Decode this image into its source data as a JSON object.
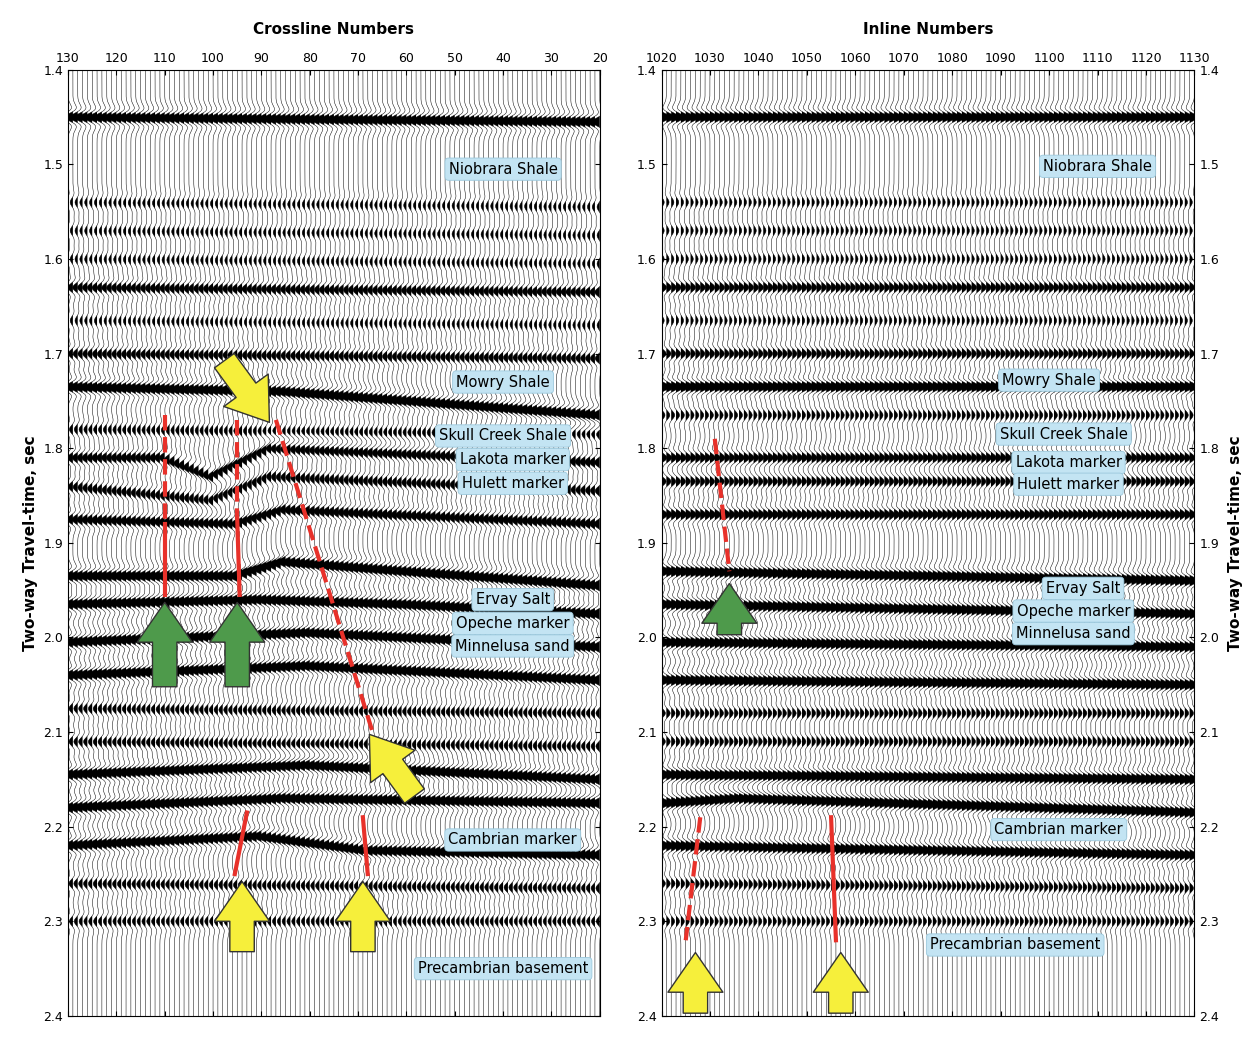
{
  "chart_data": [
    {
      "type": "seismic_section",
      "title": "Crossline Numbers",
      "ylabel": "Two-way Travel-time, sec",
      "xlim": [
        130,
        20
      ],
      "xticks": [
        130,
        120,
        110,
        100,
        90,
        80,
        70,
        60,
        50,
        40,
        30,
        20
      ],
      "ylim": [
        2.4,
        1.4
      ],
      "yticks": [
        1.4,
        1.5,
        1.6,
        1.7,
        1.8,
        1.9,
        2.0,
        2.1,
        2.2,
        2.3,
        2.4
      ],
      "horizons": [
        {
          "x": [
            130,
            20
          ],
          "t": [
            1.45,
            1.455
          ],
          "amplitude": 1.0
        },
        {
          "x": [
            130,
            20
          ],
          "t": [
            1.54,
            1.545
          ],
          "amplitude": 0.35
        },
        {
          "x": [
            130,
            20
          ],
          "t": [
            1.57,
            1.575
          ],
          "amplitude": 0.35
        },
        {
          "x": [
            130,
            20
          ],
          "t": [
            1.6,
            1.605
          ],
          "amplitude": 0.35
        },
        {
          "x": [
            130,
            20
          ],
          "t": [
            1.63,
            1.635
          ],
          "amplitude": 0.65
        },
        {
          "x": [
            130,
            20
          ],
          "t": [
            1.665,
            1.67
          ],
          "amplitude": 0.35
        },
        {
          "x": [
            130,
            20
          ],
          "t": [
            1.7,
            1.705
          ],
          "amplitude": 0.6
        },
        {
          "x": [
            130,
            85,
            20
          ],
          "t": [
            1.735,
            1.74,
            1.765
          ],
          "amplitude": 1.0
        },
        {
          "x": [
            130,
            20
          ],
          "t": [
            1.78,
            1.785
          ],
          "amplitude": 0.45
        },
        {
          "x": [
            130,
            110,
            100,
            88,
            20
          ],
          "t": [
            1.81,
            1.81,
            1.83,
            1.8,
            1.815
          ],
          "amplitude": 0.7
        },
        {
          "x": [
            130,
            100,
            88,
            20
          ],
          "t": [
            1.84,
            1.855,
            1.83,
            1.845
          ],
          "amplitude": 0.6
        },
        {
          "x": [
            130,
            95,
            85,
            20
          ],
          "t": [
            1.875,
            1.88,
            1.865,
            1.88
          ],
          "amplitude": 0.75
        },
        {
          "x": [
            130,
            95,
            85,
            60,
            20
          ],
          "t": [
            1.935,
            1.935,
            1.92,
            1.93,
            1.945
          ],
          "amplitude": 1.0
        },
        {
          "x": [
            130,
            90,
            60,
            20
          ],
          "t": [
            1.965,
            1.96,
            1.965,
            1.975
          ],
          "amplitude": 1.0
        },
        {
          "x": [
            130,
            80,
            20
          ],
          "t": [
            2.005,
            1.995,
            2.01
          ],
          "amplitude": 1.0
        },
        {
          "x": [
            130,
            80,
            20
          ],
          "t": [
            2.04,
            2.03,
            2.045
          ],
          "amplitude": 1.0
        },
        {
          "x": [
            130,
            20
          ],
          "t": [
            2.075,
            2.08
          ],
          "amplitude": 0.5
        },
        {
          "x": [
            130,
            20
          ],
          "t": [
            2.11,
            2.115
          ],
          "amplitude": 0.5
        },
        {
          "x": [
            130,
            80,
            20
          ],
          "t": [
            2.145,
            2.135,
            2.15
          ],
          "amplitude": 1.0
        },
        {
          "x": [
            130,
            85,
            20
          ],
          "t": [
            2.18,
            2.17,
            2.175
          ],
          "amplitude": 1.0
        },
        {
          "x": [
            130,
            90,
            68,
            20
          ],
          "t": [
            2.22,
            2.21,
            2.225,
            2.23
          ],
          "amplitude": 0.95
        },
        {
          "x": [
            130,
            20
          ],
          "t": [
            2.26,
            2.265
          ],
          "amplitude": 0.5
        },
        {
          "x": [
            130,
            20
          ],
          "t": [
            2.3,
            2.3
          ],
          "amplitude": 0.45
        }
      ],
      "labels": [
        {
          "text": "Niobrara Shale",
          "x": 40,
          "t": 1.505
        },
        {
          "text": "Mowry Shale",
          "x": 40,
          "t": 1.73
        },
        {
          "text": "Skull Creek Shale",
          "x": 40,
          "t": 1.787
        },
        {
          "text": "Lakota marker",
          "x": 38,
          "t": 1.812
        },
        {
          "text": "Hulett marker",
          "x": 38,
          "t": 1.837
        },
        {
          "text": "Ervay Salt",
          "x": 38,
          "t": 1.96
        },
        {
          "text": "Opeche marker",
          "x": 38,
          "t": 1.985
        },
        {
          "text": "Minnelusa sand",
          "x": 38,
          "t": 2.009
        },
        {
          "text": "Cambrian marker",
          "x": 38,
          "t": 2.214
        },
        {
          "text": "Precambrian basement",
          "x": 40,
          "t": 2.35
        }
      ],
      "faults": [
        {
          "x": [
            110,
            110
          ],
          "t": [
            1.765,
            1.88
          ],
          "line_style": "dashed"
        },
        {
          "x": [
            110,
            110
          ],
          "t": [
            1.88,
            1.955
          ],
          "line_style": "solid"
        },
        {
          "x": [
            95,
            95
          ],
          "t": [
            1.77,
            1.875
          ],
          "line_style": "dashed"
        },
        {
          "x": [
            95,
            94.5
          ],
          "t": [
            1.875,
            1.955
          ],
          "line_style": "solid"
        },
        {
          "x": [
            87,
            67
          ],
          "t": [
            1.77,
            2.1
          ],
          "line_style": "dashed"
        },
        {
          "x": [
            93,
            95.5
          ],
          "t": [
            2.185,
            2.25
          ],
          "line_style": "solid"
        },
        {
          "x": [
            69,
            68
          ],
          "t": [
            2.19,
            2.25
          ],
          "line_style": "solid"
        }
      ],
      "arrows": [
        {
          "color": "#4e9a4b",
          "tail": [
            110,
            2.055
          ],
          "tip": [
            110,
            1.96
          ]
        },
        {
          "color": "#4e9a4b",
          "tail": [
            95,
            2.055
          ],
          "tip": [
            95,
            1.96
          ]
        },
        {
          "color": "#f6ef3b",
          "tail": [
            98,
            1.705
          ],
          "tip": [
            88,
            1.775
          ]
        },
        {
          "color": "#f6ef3b",
          "tail": [
            58,
            2.17
          ],
          "tip": [
            68,
            2.1
          ]
        },
        {
          "color": "#f6ef3b",
          "tail": [
            94,
            2.335
          ],
          "tip": [
            94,
            2.255
          ]
        },
        {
          "color": "#f6ef3b",
          "tail": [
            69,
            2.335
          ],
          "tip": [
            69,
            2.255
          ]
        }
      ]
    },
    {
      "type": "seismic_section",
      "title": "Inline Numbers",
      "ylabel": "Two-way Travel-time, sec",
      "xlim": [
        1020,
        1130
      ],
      "xticks": [
        1020,
        1030,
        1040,
        1050,
        1060,
        1070,
        1080,
        1090,
        1100,
        1110,
        1120,
        1130
      ],
      "ylim": [
        2.4,
        1.4
      ],
      "yticks": [
        1.4,
        1.5,
        1.6,
        1.7,
        1.8,
        1.9,
        2.0,
        2.1,
        2.2,
        2.3,
        2.4
      ],
      "horizons": [
        {
          "x": [
            1020,
            1130
          ],
          "t": [
            1.45,
            1.45
          ],
          "amplitude": 1.0
        },
        {
          "x": [
            1020,
            1130
          ],
          "t": [
            1.54,
            1.54
          ],
          "amplitude": 0.35
        },
        {
          "x": [
            1020,
            1130
          ],
          "t": [
            1.57,
            1.57
          ],
          "amplitude": 0.35
        },
        {
          "x": [
            1020,
            1130
          ],
          "t": [
            1.6,
            1.6
          ],
          "amplitude": 0.35
        },
        {
          "x": [
            1020,
            1130
          ],
          "t": [
            1.63,
            1.63
          ],
          "amplitude": 0.65
        },
        {
          "x": [
            1020,
            1130
          ],
          "t": [
            1.665,
            1.665
          ],
          "amplitude": 0.35
        },
        {
          "x": [
            1020,
            1130
          ],
          "t": [
            1.7,
            1.7
          ],
          "amplitude": 0.6
        },
        {
          "x": [
            1020,
            1130
          ],
          "t": [
            1.735,
            1.735
          ],
          "amplitude": 1.0
        },
        {
          "x": [
            1020,
            1130
          ],
          "t": [
            1.765,
            1.765
          ],
          "amplitude": 0.45
        },
        {
          "x": [
            1020,
            1130
          ],
          "t": [
            1.81,
            1.81
          ],
          "amplitude": 0.7
        },
        {
          "x": [
            1020,
            1130
          ],
          "t": [
            1.835,
            1.835
          ],
          "amplitude": 0.6
        },
        {
          "x": [
            1020,
            1130
          ],
          "t": [
            1.87,
            1.87
          ],
          "amplitude": 0.75
        },
        {
          "x": [
            1020,
            1130
          ],
          "t": [
            1.93,
            1.94
          ],
          "amplitude": 1.0
        },
        {
          "x": [
            1020,
            1130
          ],
          "t": [
            1.965,
            1.975
          ],
          "amplitude": 1.0
        },
        {
          "x": [
            1020,
            1130
          ],
          "t": [
            2.005,
            2.01
          ],
          "amplitude": 1.0
        },
        {
          "x": [
            1020,
            1130
          ],
          "t": [
            2.045,
            2.05
          ],
          "amplitude": 1.0
        },
        {
          "x": [
            1020,
            1130
          ],
          "t": [
            2.08,
            2.08
          ],
          "amplitude": 0.5
        },
        {
          "x": [
            1020,
            1130
          ],
          "t": [
            2.11,
            2.11
          ],
          "amplitude": 0.5
        },
        {
          "x": [
            1020,
            1130
          ],
          "t": [
            2.145,
            2.15
          ],
          "amplitude": 1.0
        },
        {
          "x": [
            1020,
            1035,
            1130
          ],
          "t": [
            2.175,
            2.17,
            2.185
          ],
          "amplitude": 1.0
        },
        {
          "x": [
            1020,
            1130
          ],
          "t": [
            2.22,
            2.23
          ],
          "amplitude": 0.95
        },
        {
          "x": [
            1020,
            1130
          ],
          "t": [
            2.26,
            2.265
          ],
          "amplitude": 0.5
        },
        {
          "x": [
            1020,
            1130
          ],
          "t": [
            2.3,
            2.3
          ],
          "amplitude": 0.45
        }
      ],
      "labels": [
        {
          "text": "Niobrara Shale",
          "x": 1110,
          "t": 1.502
        },
        {
          "text": "Mowry Shale",
          "x": 1100,
          "t": 1.728
        },
        {
          "text": "Skull Creek Shale",
          "x": 1103,
          "t": 1.785
        },
        {
          "text": "Lakota marker",
          "x": 1104,
          "t": 1.815
        },
        {
          "text": "Hulett marker",
          "x": 1104,
          "t": 1.838
        },
        {
          "text": "Ervay Salt",
          "x": 1107,
          "t": 1.948
        },
        {
          "text": "Opeche marker",
          "x": 1105,
          "t": 1.972
        },
        {
          "text": "Minnelusa sand",
          "x": 1105,
          "t": 1.996
        },
        {
          "text": "Cambrian marker",
          "x": 1102,
          "t": 2.203
        },
        {
          "text": "Precambrian basement",
          "x": 1093,
          "t": 2.325
        }
      ],
      "faults": [
        {
          "x": [
            1031,
            1034
          ],
          "t": [
            1.79,
            1.93
          ],
          "line_style": "dashed"
        },
        {
          "x": [
            1028,
            1025
          ],
          "t": [
            2.19,
            2.32
          ],
          "line_style": "dashed"
        },
        {
          "x": [
            1055,
            1056
          ],
          "t": [
            2.19,
            2.32
          ],
          "line_style": "solid"
        }
      ],
      "arrows": [
        {
          "color": "#4e9a4b",
          "tail": [
            1034,
            2.0
          ],
          "tip": [
            1034,
            1.94
          ]
        },
        {
          "color": "#f6ef3b",
          "tail": [
            1027,
            2.4
          ],
          "tip": [
            1027,
            2.33
          ]
        },
        {
          "color": "#f6ef3b",
          "tail": [
            1057,
            2.4
          ],
          "tip": [
            1057,
            2.33
          ]
        }
      ]
    }
  ]
}
